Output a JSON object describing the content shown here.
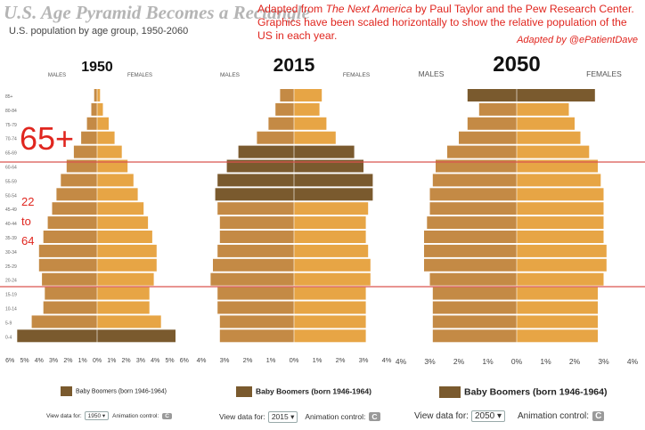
{
  "header": {
    "title": "U.S. Age Pyramid Becomes a Rectangle",
    "subtitle": "U.S. population by age group, 1950-2060",
    "note_prefix": "Adapted from ",
    "note_book": "The Next America",
    "note_rest": " by Paul Taylor and the Pew Research Center. Graphics have been scaled horizontally to show the relative population of the US in each year.",
    "credit": "Adapted by @ePatientDave"
  },
  "annotations": {
    "label_65": "65+",
    "label_22": "22",
    "label_to": "to",
    "label_64": "64"
  },
  "colors": {
    "male": "#c48a45",
    "female": "#e7a545",
    "male_boomer": "#7a5a2e",
    "female_boomer": "#7a5a2e",
    "redline": "#d9534f",
    "annot": "#e0261f"
  },
  "chart_data": [
    {
      "type": "bar",
      "title": "1950",
      "male_label": "MALES",
      "female_label": "FEMALES",
      "categories": [
        "0-4",
        "5-9",
        "10-14",
        "15-19",
        "20-24",
        "25-29",
        "30-34",
        "35-39",
        "40-44",
        "45-49",
        "50-54",
        "55-59",
        "60-64",
        "65-69",
        "70-74",
        "75-79",
        "80-84",
        "85+"
      ],
      "series": [
        {
          "name": "Males",
          "values": [
            5.5,
            4.5,
            3.7,
            3.6,
            3.8,
            4.0,
            4.0,
            3.7,
            3.4,
            3.1,
            2.8,
            2.5,
            2.1,
            1.6,
            1.1,
            0.7,
            0.4,
            0.2
          ]
        },
        {
          "name": "Females",
          "values": [
            5.4,
            4.4,
            3.6,
            3.6,
            3.9,
            4.1,
            4.1,
            3.8,
            3.5,
            3.2,
            2.8,
            2.5,
            2.1,
            1.7,
            1.2,
            0.8,
            0.4,
            0.2
          ]
        }
      ],
      "boomer_rows": [
        "0-4"
      ],
      "xlim": [
        -6,
        6
      ],
      "xticks": [
        "6%",
        "5%",
        "4%",
        "3%",
        "2%",
        "1%",
        "0%",
        "1%",
        "2%",
        "3%",
        "4%",
        "5%",
        "6%"
      ],
      "legend": "Baby Boomers (born 1946-1964)",
      "view_label": "View data for:",
      "year": "1950",
      "anim_label": "Animation control:",
      "anim_icon": "C"
    },
    {
      "type": "bar",
      "title": "2015",
      "male_label": "MALES",
      "female_label": "FEMALES",
      "categories": [
        "0-4",
        "5-9",
        "10-14",
        "15-19",
        "20-24",
        "25-29",
        "30-34",
        "35-39",
        "40-44",
        "45-49",
        "50-54",
        "55-59",
        "60-64",
        "65-69",
        "70-74",
        "75-79",
        "80-84",
        "85+"
      ],
      "series": [
        {
          "name": "Males",
          "values": [
            3.2,
            3.2,
            3.3,
            3.3,
            3.6,
            3.5,
            3.3,
            3.2,
            3.2,
            3.3,
            3.4,
            3.3,
            2.9,
            2.4,
            1.6,
            1.1,
            0.8,
            0.6
          ]
        },
        {
          "name": "Females",
          "values": [
            3.1,
            3.1,
            3.1,
            3.1,
            3.3,
            3.3,
            3.2,
            3.1,
            3.1,
            3.2,
            3.4,
            3.4,
            3.0,
            2.6,
            1.8,
            1.4,
            1.1,
            1.2
          ]
        }
      ],
      "boomer_rows": [
        "50-54",
        "55-59",
        "60-64",
        "65-69"
      ],
      "xlim": [
        -4,
        4
      ],
      "xticks": [
        "4%",
        "3%",
        "2%",
        "1%",
        "0%",
        "1%",
        "2%",
        "3%",
        "4%"
      ],
      "legend": "Baby Boomers (born 1946-1964)",
      "view_label": "View data for:",
      "year": "2015",
      "anim_label": "Animation control:",
      "anim_icon": "C"
    },
    {
      "type": "bar",
      "title": "2050",
      "male_label": "MALES",
      "female_label": "FEMALES",
      "categories": [
        "0-4",
        "5-9",
        "10-14",
        "15-19",
        "20-24",
        "25-29",
        "30-34",
        "35-39",
        "40-44",
        "45-49",
        "50-54",
        "55-59",
        "60-64",
        "65-69",
        "70-74",
        "75-79",
        "80-84",
        "85+"
      ],
      "series": [
        {
          "name": "Males",
          "values": [
            2.9,
            2.9,
            2.9,
            2.9,
            3.0,
            3.2,
            3.2,
            3.2,
            3.1,
            3.0,
            3.0,
            2.9,
            2.8,
            2.4,
            2.0,
            1.7,
            1.3,
            1.7
          ]
        },
        {
          "name": "Females",
          "values": [
            2.8,
            2.8,
            2.8,
            2.8,
            3.0,
            3.1,
            3.1,
            3.0,
            3.0,
            3.0,
            3.0,
            2.9,
            2.8,
            2.5,
            2.2,
            2.0,
            1.8,
            2.7
          ]
        }
      ],
      "boomer_rows": [
        "85+"
      ],
      "xlim": [
        -4,
        4
      ],
      "xticks": [
        "4%",
        "3%",
        "2%",
        "1%",
        "0%",
        "1%",
        "2%",
        "3%",
        "4%"
      ],
      "legend": "Baby Boomers (born 1946-1964)",
      "view_label": "View data for:",
      "year": "2050",
      "anim_label": "Animation control:",
      "anim_icon": "C"
    }
  ]
}
